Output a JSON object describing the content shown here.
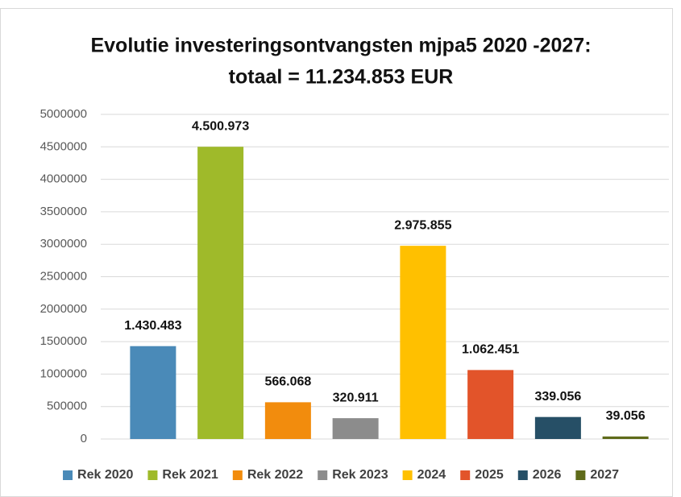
{
  "chart_data": {
    "type": "bar",
    "title": "Evolutie investeringsontvangsten mjpa5 2020 -2027:",
    "subtitle": "totaal = 11.234.853 EUR",
    "categories": [
      null
    ],
    "series": [
      {
        "name": "Rek 2020",
        "color": "#4a8ab8",
        "values": [
          1430483
        ],
        "value_labels": [
          "1.430.483"
        ]
      },
      {
        "name": "Rek 2021",
        "color": "#9fba2a",
        "values": [
          4500973
        ],
        "value_labels": [
          "4.500.973"
        ]
      },
      {
        "name": "Rek 2022",
        "color": "#f28c0d",
        "values": [
          566068
        ],
        "value_labels": [
          "566.068"
        ]
      },
      {
        "name": "Rek 2023",
        "color": "#8c8c8c",
        "values": [
          320911
        ],
        "value_labels": [
          "320.911"
        ]
      },
      {
        "name": "2024",
        "color": "#ffc000",
        "values": [
          2975855
        ],
        "value_labels": [
          "2.975.855"
        ]
      },
      {
        "name": "2025",
        "color": "#e2542a",
        "values": [
          1062451
        ],
        "value_labels": [
          "1.062.451"
        ]
      },
      {
        "name": "2026",
        "color": "#264f66",
        "values": [
          339056
        ],
        "value_labels": [
          "339.056"
        ]
      },
      {
        "name": "2027",
        "color": "#5f6b1a",
        "values": [
          39056
        ],
        "value_labels": [
          "39.056"
        ]
      }
    ],
    "ylim": [
      0,
      5000000
    ],
    "yticks": [
      0,
      500000,
      1000000,
      1500000,
      2000000,
      2500000,
      3000000,
      3500000,
      4000000,
      4500000,
      5000000
    ],
    "grid": true,
    "legend": "bottom"
  }
}
